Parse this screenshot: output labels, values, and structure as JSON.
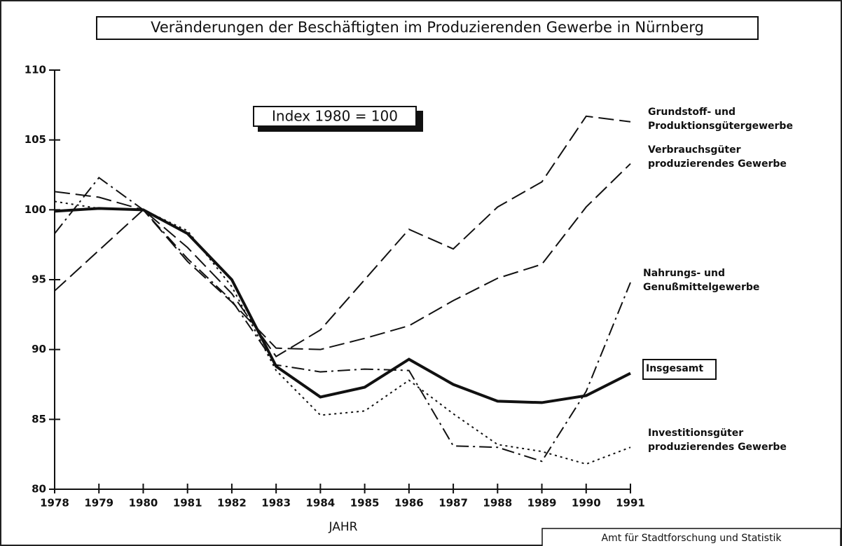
{
  "chart_data": {
    "type": "line",
    "title": "Veränderungen der Beschäftigten im Produzierenden Gewerbe in Nürnberg",
    "annotation": "Index 1980 = 100",
    "x_label": "JAHR",
    "source": "Amt für Stadtforschung und Statistik",
    "x": [
      1978,
      1979,
      1980,
      1981,
      1982,
      1983,
      1984,
      1985,
      1986,
      1987,
      1988,
      1989,
      1990,
      1991
    ],
    "xlim": [
      1978,
      1991
    ],
    "xticks": [
      1978,
      1979,
      1980,
      1981,
      1982,
      1983,
      1984,
      1985,
      1986,
      1987,
      1988,
      1989,
      1990,
      1991
    ],
    "ylim": [
      80,
      110
    ],
    "yticks": [
      80,
      85,
      90,
      95,
      100,
      105,
      110
    ],
    "series": [
      {
        "name": "Grundstoff- und\nProduktionsgütergewerbe",
        "color": "#111",
        "dash": "long",
        "values": [
          94.2,
          97.1,
          100,
          97.3,
          94,
          89.5,
          91.4,
          95,
          98.6,
          97.2,
          100.2,
          102,
          106.7,
          106.3
        ]
      },
      {
        "name": "Verbrauchsgüter\nproduzierendes Gewerbe",
        "color": "#111",
        "dash": "long",
        "values": [
          101.3,
          100.9,
          100,
          96.3,
          93.4,
          90.1,
          90,
          90.8,
          91.7,
          93.5,
          95.1,
          96.1,
          100.2,
          103.3
        ]
      },
      {
        "name": "Nahrungs- und\nGenußmittelgewerbe",
        "color": "#111",
        "dash": "dashdot",
        "values": [
          98.3,
          102.3,
          100,
          96.5,
          93.5,
          88.9,
          88.4,
          88.6,
          88.5,
          83.1,
          83,
          82,
          87,
          94.8
        ]
      },
      {
        "name": "Insgesamt",
        "color": "#111",
        "dash": "solid",
        "values": [
          99.9,
          100.1,
          100,
          98.3,
          95,
          88.8,
          86.6,
          87.3,
          89.3,
          87.5,
          86.3,
          86.2,
          86.7,
          88.3
        ]
      },
      {
        "name": "Investitionsgüter\nproduzierendes Gewerbe",
        "color": "#111",
        "dash": "dot",
        "values": [
          100.6,
          100.1,
          100,
          98.5,
          94.5,
          88.5,
          85.3,
          85.6,
          87.8,
          85.4,
          83.2,
          82.7,
          81.8,
          83
        ]
      }
    ]
  }
}
